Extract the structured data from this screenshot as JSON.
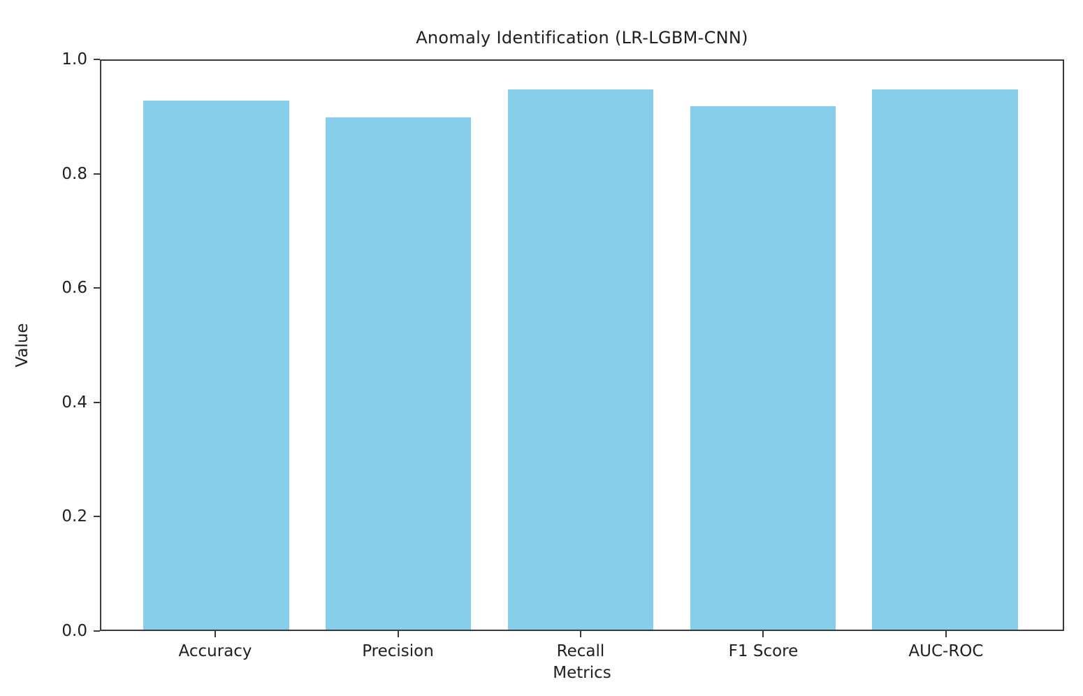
{
  "figure": {
    "background": "#ffffff"
  },
  "chart_data": {
    "type": "bar",
    "title": "Anomaly Identification (LR-LGBM-CNN)",
    "categories": [
      "Accuracy",
      "Precision",
      "Recall",
      "F1 Score",
      "AUC-ROC"
    ],
    "values": [
      0.93,
      0.9,
      0.95,
      0.92,
      0.95
    ],
    "xlabel": "Metrics",
    "ylabel": "Value",
    "ylim": [
      0.0,
      1.0
    ],
    "yticks": [
      0.0,
      0.2,
      0.4,
      0.6,
      0.8,
      1.0
    ],
    "ytick_labels": [
      "0.0",
      "0.2",
      "0.4",
      "0.6",
      "0.8",
      "1.0"
    ],
    "grid": false,
    "legend": null,
    "colors": {
      "bar": "#87CEEB",
      "axis": "#3a3a3a",
      "text": "#1f1f1f",
      "background": "#ffffff"
    }
  }
}
